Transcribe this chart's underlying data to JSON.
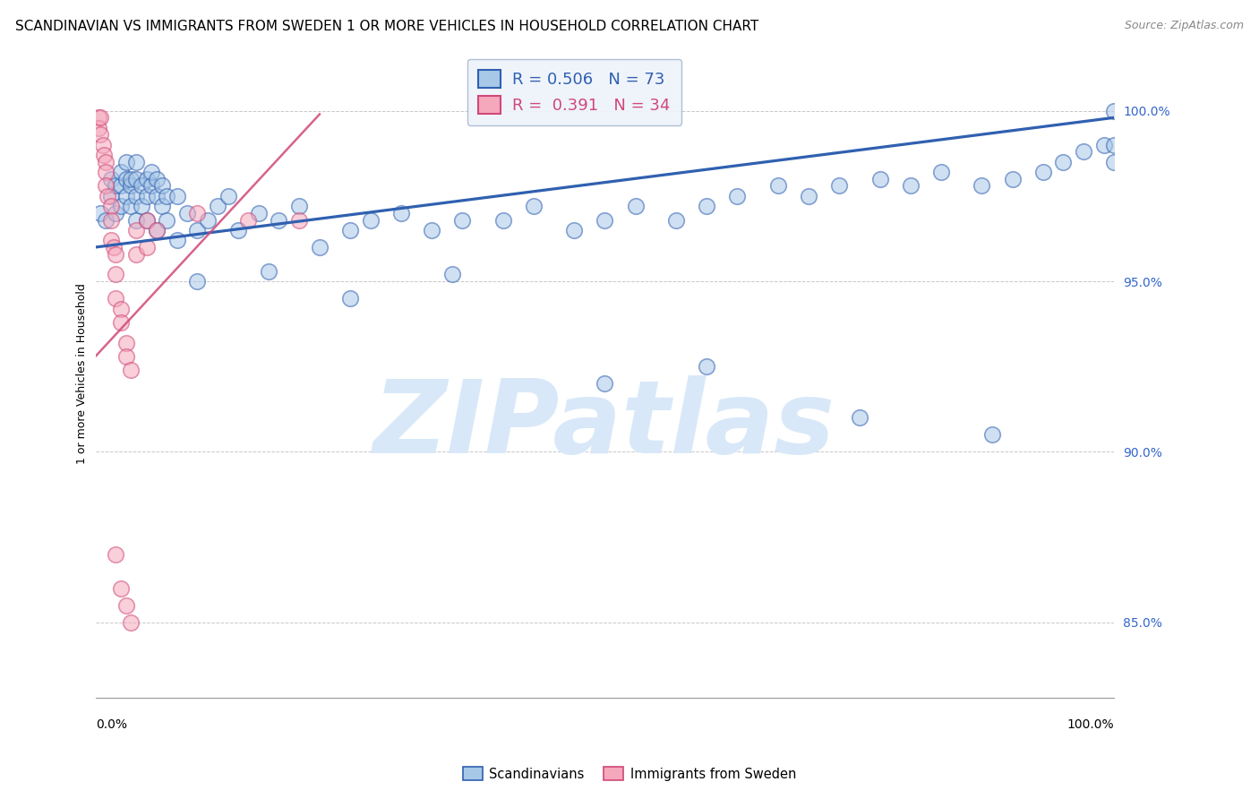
{
  "title": "SCANDINAVIAN VS IMMIGRANTS FROM SWEDEN 1 OR MORE VEHICLES IN HOUSEHOLD CORRELATION CHART",
  "source": "Source: ZipAtlas.com",
  "ylabel": "1 or more Vehicles in Household",
  "ytick_values": [
    0.85,
    0.9,
    0.95,
    1.0
  ],
  "xlim": [
    0.0,
    1.0
  ],
  "ylim": [
    0.828,
    1.018
  ],
  "legend_blue_label": "R = 0.506   N = 73",
  "legend_pink_label": "R =  0.391   N = 34",
  "scatter_blue_color": "#a8c8e8",
  "scatter_pink_color": "#f5a8bc",
  "line_blue_color": "#3060b0",
  "line_pink_color": "#d04878",
  "watermark_color": "#d8e8f8",
  "blue_x": [
    0.005,
    0.01,
    0.015,
    0.015,
    0.02,
    0.02,
    0.025,
    0.025,
    0.025,
    0.03,
    0.03,
    0.03,
    0.035,
    0.035,
    0.035,
    0.04,
    0.04,
    0.04,
    0.04,
    0.045,
    0.045,
    0.05,
    0.05,
    0.05,
    0.055,
    0.055,
    0.06,
    0.06,
    0.06,
    0.065,
    0.065,
    0.07,
    0.07,
    0.08,
    0.08,
    0.09,
    0.1,
    0.11,
    0.12,
    0.13,
    0.14,
    0.16,
    0.18,
    0.2,
    0.22,
    0.25,
    0.27,
    0.3,
    0.33,
    0.36,
    0.4,
    0.43,
    0.47,
    0.5,
    0.53,
    0.57,
    0.6,
    0.63,
    0.67,
    0.7,
    0.73,
    0.77,
    0.8,
    0.83,
    0.87,
    0.9,
    0.93,
    0.95,
    0.97,
    0.99,
    1.0,
    1.0,
    1.0
  ],
  "blue_y": [
    0.97,
    0.968,
    0.975,
    0.98,
    0.97,
    0.978,
    0.972,
    0.978,
    0.982,
    0.975,
    0.98,
    0.985,
    0.972,
    0.978,
    0.98,
    0.968,
    0.975,
    0.98,
    0.985,
    0.972,
    0.978,
    0.968,
    0.975,
    0.98,
    0.978,
    0.982,
    0.965,
    0.975,
    0.98,
    0.972,
    0.978,
    0.968,
    0.975,
    0.962,
    0.975,
    0.97,
    0.965,
    0.968,
    0.972,
    0.975,
    0.965,
    0.97,
    0.968,
    0.972,
    0.96,
    0.965,
    0.968,
    0.97,
    0.965,
    0.968,
    0.968,
    0.972,
    0.965,
    0.968,
    0.972,
    0.968,
    0.972,
    0.975,
    0.978,
    0.975,
    0.978,
    0.98,
    0.978,
    0.982,
    0.978,
    0.98,
    0.982,
    0.985,
    0.988,
    0.99,
    1.0,
    0.985,
    0.99
  ],
  "blue_outlier_x": [
    0.1,
    0.17,
    0.25,
    0.35,
    0.5,
    0.6,
    0.75,
    0.88
  ],
  "blue_outlier_y": [
    0.95,
    0.953,
    0.945,
    0.952,
    0.92,
    0.925,
    0.91,
    0.905
  ],
  "pink_x": [
    0.003,
    0.003,
    0.005,
    0.005,
    0.007,
    0.008,
    0.01,
    0.01,
    0.01,
    0.012,
    0.015,
    0.015,
    0.015,
    0.018,
    0.02,
    0.02,
    0.02,
    0.025,
    0.025,
    0.03,
    0.03,
    0.035,
    0.04,
    0.04,
    0.05,
    0.05,
    0.06,
    0.1,
    0.15,
    0.2,
    0.02,
    0.025,
    0.03,
    0.035
  ],
  "pink_y": [
    0.998,
    0.995,
    0.998,
    0.993,
    0.99,
    0.987,
    0.985,
    0.982,
    0.978,
    0.975,
    0.972,
    0.968,
    0.962,
    0.96,
    0.958,
    0.952,
    0.945,
    0.942,
    0.938,
    0.932,
    0.928,
    0.924,
    0.958,
    0.965,
    0.96,
    0.968,
    0.965,
    0.97,
    0.968,
    0.968,
    0.87,
    0.86,
    0.855,
    0.85
  ],
  "blue_line_x0": 0.0,
  "blue_line_y0": 0.96,
  "blue_line_x1": 1.0,
  "blue_line_y1": 0.998,
  "pink_line_x0": 0.0,
  "pink_line_y0": 0.928,
  "pink_line_x1": 0.22,
  "pink_line_y1": 0.999,
  "grid_color": "#c8c8c8",
  "legend_box_facecolor": "#eef4fb",
  "legend_box_edgecolor": "#aabbd0",
  "title_fontsize": 11,
  "source_fontsize": 9,
  "axis_label_fontsize": 9,
  "tick_fontsize": 10,
  "right_tick_color": "#3366cc"
}
